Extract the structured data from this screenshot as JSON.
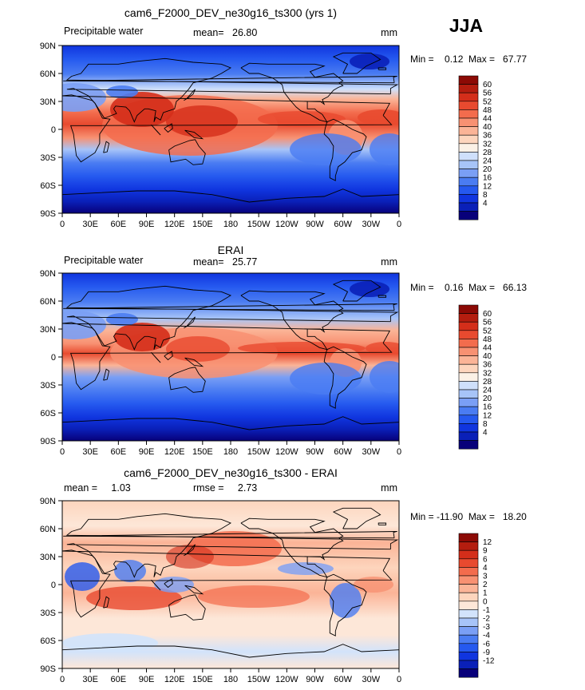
{
  "season_label": "JJA",
  "x_ticks": [
    "0",
    "30E",
    "60E",
    "90E",
    "120E",
    "150E",
    "180",
    "150W",
    "120W",
    "90W",
    "60W",
    "30W",
    "0"
  ],
  "y_ticks": [
    "90N",
    "60N",
    "30N",
    "0",
    "30S",
    "60S",
    "90S"
  ],
  "colors": {
    "abs_scale": [
      "#08007a",
      "#0a20b8",
      "#1035df",
      "#2559ef",
      "#4a7cf2",
      "#7a9ff5",
      "#a7c4f8",
      "#cfe0fb",
      "#fbf1e6",
      "#fdd5bd",
      "#fbb497",
      "#f89172",
      "#f36c4d",
      "#e84a2f",
      "#d42e1a",
      "#b41d0f",
      "#8c0a05"
    ],
    "diff_scale": [
      "#08007a",
      "#0a20b8",
      "#1035df",
      "#2559ef",
      "#4a7cf2",
      "#7a9ff5",
      "#a7c4f8",
      "#d2e3fb",
      "#fde7d8",
      "#fdd5bd",
      "#fbb497",
      "#f89172",
      "#f36c4d",
      "#e84a2f",
      "#d42e1a",
      "#b41d0f",
      "#8c0a05"
    ]
  },
  "chart_data": [
    {
      "type": "heatmap",
      "title": "cam6_F2000_DEV_ne30g16_ts300 (yrs 1)",
      "left_label": "Precipitable water",
      "mean_text": "mean=   26.80",
      "right_label": "mm",
      "minmax_text": "Min =    0.12  Max =   67.77",
      "colorbar_levels": [
        "60",
        "56",
        "52",
        "48",
        "44",
        "40",
        "36",
        "32",
        "28",
        "24",
        "20",
        "16",
        "12",
        "8",
        "4"
      ],
      "xlim": [
        0,
        360
      ],
      "ylim": [
        -90,
        90
      ],
      "value_min": 0.12,
      "value_max": 67.77,
      "mean_value": 26.8
    },
    {
      "type": "heatmap",
      "title": "ERAI",
      "left_label": "Precipitable water",
      "mean_text": "mean=   25.77",
      "right_label": "mm",
      "minmax_text": "Min =    0.16  Max =   66.13",
      "colorbar_levels": [
        "60",
        "56",
        "52",
        "48",
        "44",
        "40",
        "36",
        "32",
        "28",
        "24",
        "20",
        "16",
        "12",
        "8",
        "4"
      ],
      "xlim": [
        0,
        360
      ],
      "ylim": [
        -90,
        90
      ],
      "value_min": 0.16,
      "value_max": 66.13,
      "mean_value": 25.77
    },
    {
      "type": "heatmap",
      "title": "cam6_F2000_DEV_ne30g16_ts300 - ERAI",
      "left_label": "mean =     1.03",
      "mean_text": "rmse =     2.73",
      "right_label": "mm",
      "minmax_text": "Min = -11.90  Max =   18.20",
      "colorbar_levels": [
        "12",
        "9",
        "6",
        "4",
        "3",
        "2",
        "1",
        "0",
        "-1",
        "-2",
        "-3",
        "-4",
        "-6",
        "-9",
        "-12"
      ],
      "xlim": [
        0,
        360
      ],
      "ylim": [
        -90,
        90
      ],
      "value_min": -11.9,
      "value_max": 18.2,
      "mean_value": 1.03,
      "rmse_value": 2.73
    }
  ]
}
